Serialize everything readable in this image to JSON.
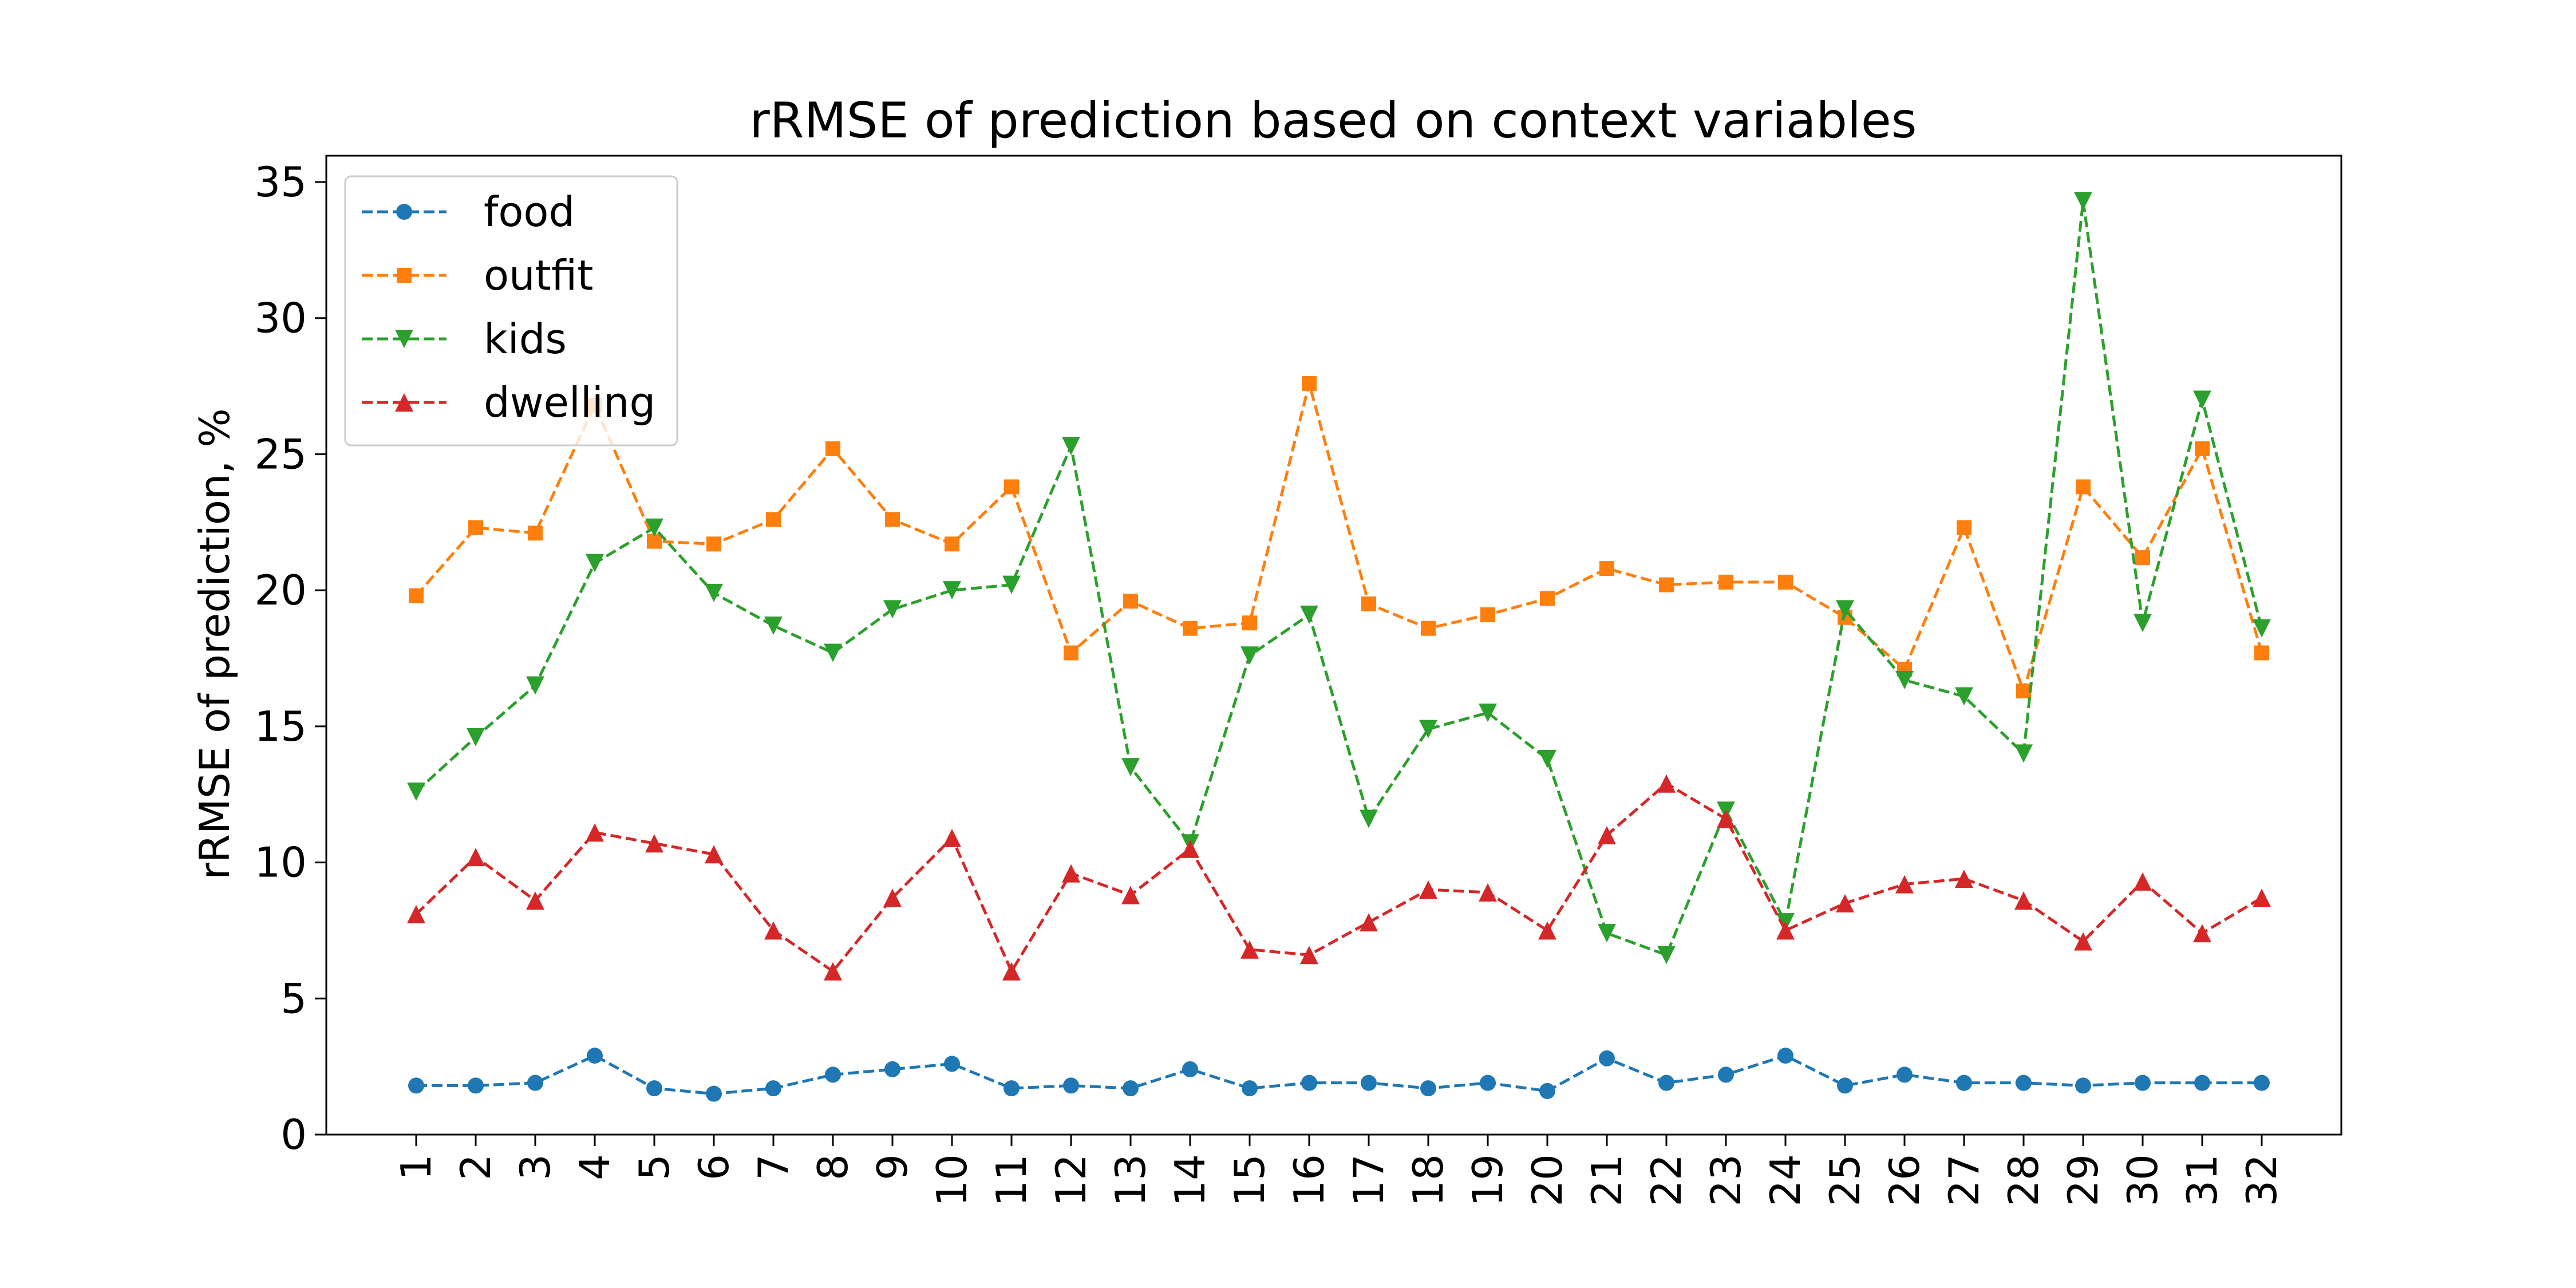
{
  "chart_data": {
    "type": "line",
    "title": "rRMSE of prediction based on context variables",
    "xlabel": "",
    "ylabel": "rRMSE of prediction, %",
    "ylim": [
      0,
      35
    ],
    "yticks": [
      "0",
      "5",
      "10",
      "15",
      "20",
      "25",
      "30",
      "35"
    ],
    "x": [
      "1",
      "2",
      "3",
      "4",
      "5",
      "6",
      "7",
      "8",
      "9",
      "10",
      "11",
      "12",
      "13",
      "14",
      "15",
      "16",
      "17",
      "18",
      "19",
      "20",
      "21",
      "22",
      "23",
      "24",
      "25",
      "26",
      "27",
      "28",
      "29",
      "30",
      "31",
      "32"
    ],
    "grid": false,
    "legend": "top-left",
    "series": [
      {
        "name": "food",
        "color": "#1f77b4",
        "marker": "circle",
        "values": [
          1.8,
          1.8,
          1.9,
          2.9,
          1.7,
          1.5,
          1.7,
          2.2,
          2.4,
          2.6,
          1.7,
          1.8,
          1.7,
          2.4,
          1.7,
          1.9,
          1.9,
          1.7,
          1.9,
          1.6,
          2.8,
          1.9,
          2.2,
          2.9,
          1.8,
          2.2,
          1.9,
          1.9,
          1.8,
          1.9,
          1.9,
          1.9
        ]
      },
      {
        "name": "outfit",
        "color": "#ff7f0e",
        "marker": "square",
        "values": [
          19.8,
          22.3,
          22.1,
          26.8,
          21.8,
          21.7,
          22.6,
          25.2,
          22.6,
          21.7,
          23.8,
          17.7,
          19.6,
          18.6,
          18.8,
          27.6,
          19.5,
          18.6,
          19.1,
          19.7,
          20.8,
          20.2,
          20.3,
          20.3,
          19.0,
          17.1,
          22.3,
          16.3,
          23.8,
          21.2,
          25.2,
          17.7
        ]
      },
      {
        "name": "kids",
        "color": "#2ca02c",
        "marker": "triangle-down",
        "values": [
          12.6,
          14.6,
          16.5,
          21.0,
          22.3,
          19.9,
          18.7,
          17.7,
          19.3,
          20.0,
          20.2,
          25.3,
          13.5,
          10.7,
          17.6,
          19.1,
          11.6,
          14.9,
          15.5,
          13.8,
          7.4,
          6.6,
          11.9,
          7.8,
          19.3,
          16.7,
          16.1,
          14.0,
          34.3,
          18.8,
          27.0,
          18.6
        ]
      },
      {
        "name": "dwelling",
        "color": "#d62728",
        "marker": "triangle-up",
        "values": [
          8.1,
          10.2,
          8.6,
          11.1,
          10.7,
          10.3,
          7.5,
          6.0,
          8.7,
          10.9,
          6.0,
          9.6,
          8.8,
          10.5,
          6.8,
          6.6,
          7.8,
          9.0,
          8.9,
          7.5,
          11.0,
          12.9,
          11.6,
          7.5,
          8.5,
          9.2,
          9.4,
          8.6,
          7.1,
          9.3,
          7.4,
          8.7
        ]
      }
    ]
  }
}
